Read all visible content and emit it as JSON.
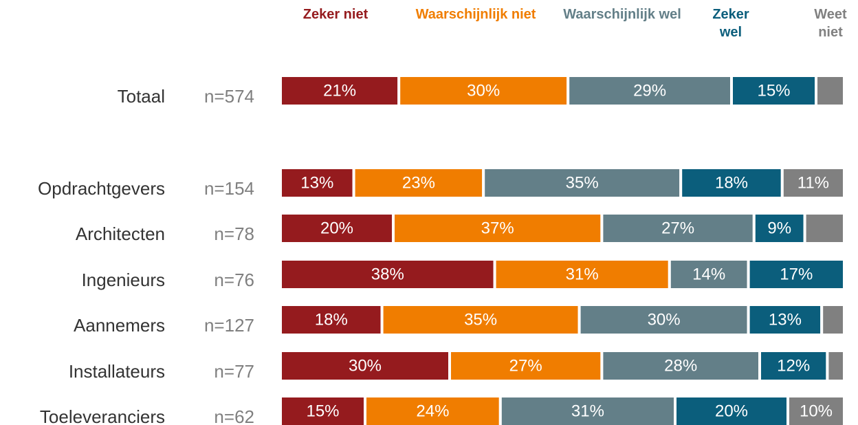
{
  "chart_data": {
    "type": "stacked_bar_horizontal",
    "categories": [
      "Totaal",
      "Opdrachtgevers",
      "Architecten",
      "Ingenieurs",
      "Aannemers",
      "Installateurs",
      "Toeleveranciers"
    ],
    "n_labels": [
      "n=574",
      "n=154",
      "n=78",
      "n=76",
      "n=127",
      "n=77",
      "n=62"
    ],
    "xlim": [
      0,
      100
    ],
    "series": [
      {
        "name": "Zeker niet",
        "color": "#951b1e",
        "values": [
          21,
          13,
          20,
          38,
          18,
          30,
          15
        ],
        "value_labels": [
          "21%",
          "13%",
          "20%",
          "38%",
          "18%",
          "30%",
          "15%"
        ]
      },
      {
        "name": "Waarschijnlijk niet",
        "color": "#f07d00",
        "values": [
          30,
          23,
          37,
          31,
          35,
          27,
          24
        ],
        "value_labels": [
          "30%",
          "23%",
          "37%",
          "31%",
          "35%",
          "27%",
          "24%"
        ]
      },
      {
        "name": "Waarschijnlijk wel",
        "color": "#637f88",
        "values": [
          29,
          35,
          27,
          14,
          30,
          28,
          31
        ],
        "value_labels": [
          "29%",
          "35%",
          "27%",
          "14%",
          "30%",
          "28%",
          "31%"
        ]
      },
      {
        "name": "Zeker wel",
        "color": "#0b5e7c",
        "values": [
          15,
          18,
          9,
          17,
          13,
          12,
          20
        ],
        "value_labels": [
          "15%",
          "18%",
          "9%",
          "17%",
          "13%",
          "12%",
          "20%"
        ]
      },
      {
        "name": "Weet niet",
        "color": "#808080",
        "values": [
          5,
          11,
          7,
          0,
          4,
          3,
          10
        ],
        "value_labels": [
          null,
          "11%",
          null,
          null,
          null,
          null,
          "10%"
        ]
      }
    ]
  }
}
